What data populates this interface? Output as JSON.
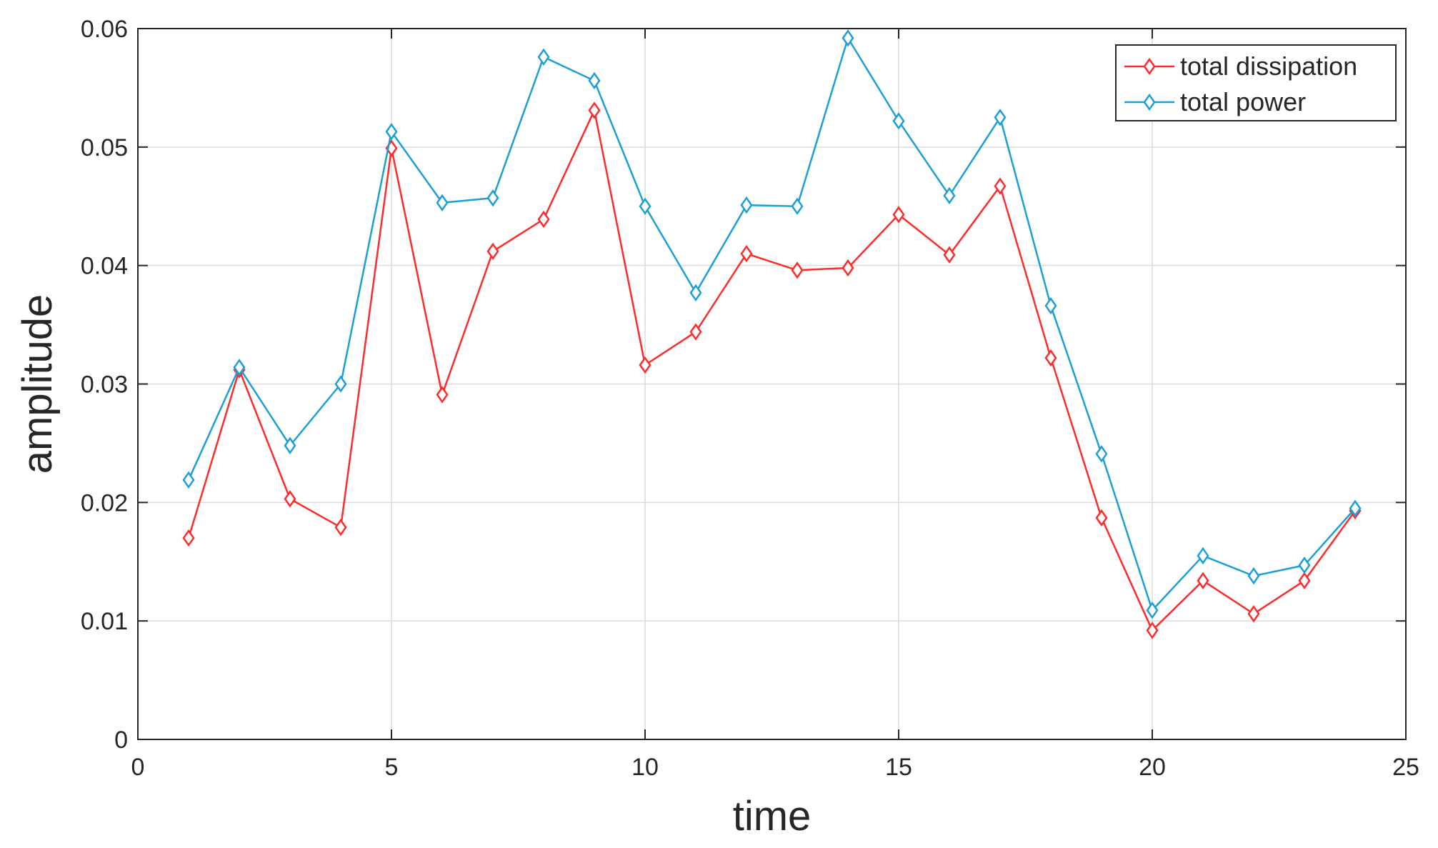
{
  "chart_data": {
    "type": "line",
    "title": "",
    "xlabel": "time",
    "ylabel": "amplitude",
    "xlim": [
      0,
      25
    ],
    "ylim": [
      0,
      0.06
    ],
    "xticks": [
      0,
      5,
      10,
      15,
      20,
      25
    ],
    "yticks": [
      0,
      0.01,
      0.02,
      0.03,
      0.04,
      0.05,
      0.06
    ],
    "xtick_labels": [
      "0",
      "5",
      "10",
      "15",
      "20",
      "25"
    ],
    "ytick_labels": [
      "0",
      "0.01",
      "0.02",
      "0.03",
      "0.04",
      "0.05",
      "0.06"
    ],
    "grid": true,
    "legend_position": "top-right",
    "marker": "diamond",
    "x": [
      1,
      2,
      3,
      4,
      5,
      6,
      7,
      8,
      9,
      10,
      11,
      12,
      13,
      14,
      15,
      16,
      17,
      18,
      19,
      20,
      21,
      22,
      23,
      24
    ],
    "series": [
      {
        "name": "total dissipation",
        "color": "#ff2b2b",
        "values": [
          0.017,
          0.0312,
          0.0203,
          0.0179,
          0.0499,
          0.0291,
          0.0412,
          0.0439,
          0.0531,
          0.0316,
          0.0344,
          0.041,
          0.0396,
          0.0398,
          0.0443,
          0.0409,
          0.0467,
          0.0322,
          0.0187,
          0.0092,
          0.0134,
          0.0106,
          0.0134,
          0.0193
        ]
      },
      {
        "name": "total power",
        "color": "#1c9fd6",
        "values": [
          0.0219,
          0.0314,
          0.0248,
          0.03,
          0.0513,
          0.0453,
          0.0457,
          0.0576,
          0.0556,
          0.045,
          0.0377,
          0.0451,
          0.045,
          0.0592,
          0.0522,
          0.0459,
          0.0525,
          0.0366,
          0.0241,
          0.0109,
          0.0155,
          0.0138,
          0.0147,
          0.0195
        ]
      }
    ]
  }
}
